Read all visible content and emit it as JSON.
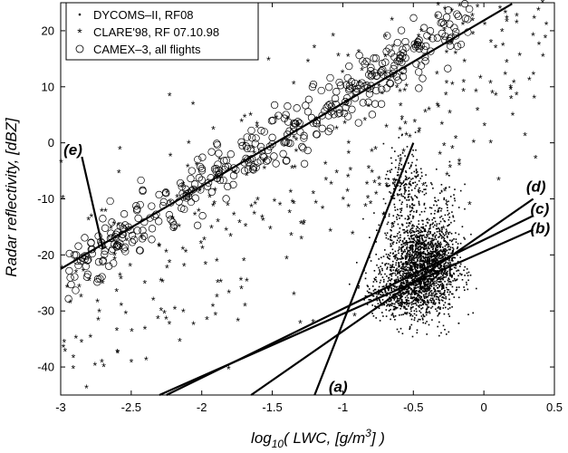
{
  "chart_data": {
    "type": "scatter",
    "title": "",
    "xlabel": {
      "prefix": "log",
      "sub": "10",
      "mid": "( LWC, [g/m",
      "sup": "3",
      "suffix": "] )"
    },
    "ylabel": "Radar reflectivity, [dBZ]",
    "xlim": [
      -3,
      0.5
    ],
    "ylim": [
      -45,
      25
    ],
    "xticks": [
      -3,
      -2.5,
      -2,
      -1.5,
      -1,
      -0.5,
      0,
      0.5
    ],
    "xtick_labels": [
      "-3",
      "-2.5",
      "-2",
      "-1.5",
      "-1",
      "-0.5",
      "0",
      "0.5"
    ],
    "yticks": [
      -40,
      -30,
      -20,
      -10,
      0,
      10,
      20
    ],
    "ytick_labels": [
      "-40",
      "-30",
      "-20",
      "-10",
      "0",
      "10",
      "20"
    ],
    "grid": false,
    "legend_position": "top-left",
    "series": [
      {
        "name": "DYCOMS–II, RF08",
        "marker": "dot",
        "clusters": [
          {
            "cx": -0.45,
            "cy": -22,
            "sx": 0.12,
            "sy": 4.0,
            "n": 1700
          },
          {
            "cx": -0.6,
            "cy": -27,
            "sx": 0.12,
            "sy": 2.0,
            "n": 400
          },
          {
            "cx": -0.55,
            "cy": -9,
            "sx": 0.08,
            "sy": 4.0,
            "n": 250
          },
          {
            "cx": -0.3,
            "cy": -20,
            "sx": 0.07,
            "sy": 6.0,
            "n": 300
          }
        ]
      },
      {
        "name": "CLARE'98, RF 07.10.98",
        "marker": "asterisk",
        "relation": {
          "slope": 16.5,
          "intercept": 16.0
        },
        "scatter_sd": 11,
        "n": 360,
        "x_range": [
          -3.0,
          0.45
        ]
      },
      {
        "name": "CAMEX–3, all flights",
        "marker": "circle",
        "relation": {
          "slope": 16.0,
          "intercept": 24.0
        },
        "scatter_sd": 2.6,
        "n": 420,
        "x_range": [
          -2.95,
          -0.1
        ]
      }
    ],
    "lines": [
      {
        "label": "(a)",
        "x": [
          -1.2,
          -0.5
        ],
        "y": [
          -45,
          0
        ]
      },
      {
        "label": "(b)",
        "x": [
          -2.3,
          0.35
        ],
        "y": [
          -45,
          -15.5
        ]
      },
      {
        "label": "(c)",
        "x": [
          -2.25,
          0.35
        ],
        "y": [
          -45,
          -13
        ]
      },
      {
        "label": "(d)",
        "x": [
          -1.65,
          0.35
        ],
        "y": [
          -45,
          -10
        ]
      },
      {
        "label": "(e)",
        "x": [
          -3.0,
          0.2
        ],
        "y": [
          -22.5,
          24.8
        ]
      }
    ],
    "annotations": [
      {
        "text": "(a)",
        "x": -1.1,
        "y": -43.5
      },
      {
        "text": "(b)",
        "x": 0.33,
        "y": -15.2
      },
      {
        "text": "(c)",
        "x": 0.33,
        "y": -11.7
      },
      {
        "text": "(d)",
        "x": 0.3,
        "y": -7.7
      },
      {
        "text": "(e)",
        "x": -2.98,
        "y": -1.2
      }
    ],
    "annotation_arrow": {
      "x": [
        -2.85,
        -2.7
      ],
      "y": [
        -2.5,
        -19
      ]
    }
  }
}
